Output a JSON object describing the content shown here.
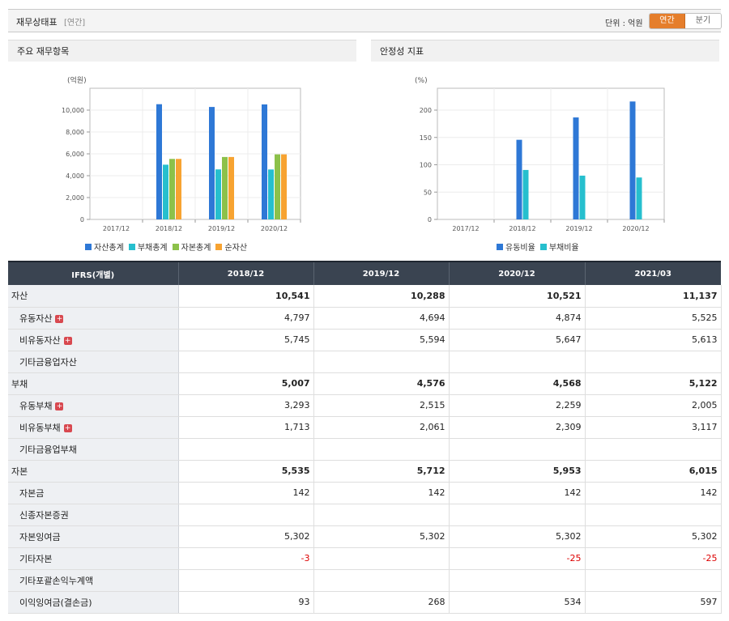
{
  "header": {
    "title": "재무상태표",
    "subtitle": "[연간]",
    "unit_label": "단위 : 억원",
    "toggle": {
      "annual": "연간",
      "quarter": "분기"
    }
  },
  "panels": {
    "left": {
      "title": "주요 재무항목"
    },
    "right": {
      "title": "안정성 지표"
    }
  },
  "chart_data": [
    {
      "type": "bar",
      "title": "주요 재무항목",
      "ylabel": "(억원)",
      "categories": [
        "2017/12",
        "2018/12",
        "2019/12",
        "2020/12"
      ],
      "ylim": [
        0,
        12000
      ],
      "yticks": [
        0,
        2000,
        4000,
        6000,
        8000,
        10000
      ],
      "ytick_labels": [
        "0",
        "2,000",
        "4,000",
        "6,000",
        "8,000",
        "10,000"
      ],
      "series": [
        {
          "name": "자산총계",
          "color": "#2e78d6",
          "values": [
            null,
            10541,
            10288,
            10521
          ]
        },
        {
          "name": "부채총계",
          "color": "#26bfce",
          "values": [
            null,
            5007,
            4576,
            4568
          ]
        },
        {
          "name": "자본총계",
          "color": "#8cc14a",
          "values": [
            null,
            5535,
            5712,
            5953
          ]
        },
        {
          "name": "순자산",
          "color": "#f7a331",
          "values": [
            null,
            5535,
            5712,
            5953
          ]
        }
      ],
      "grid": true,
      "legend": "bottom"
    },
    {
      "type": "bar",
      "title": "안정성 지표",
      "ylabel": "(%)",
      "categories": [
        "2017/12",
        "2018/12",
        "2019/12",
        "2020/12"
      ],
      "ylim": [
        0,
        240
      ],
      "yticks": [
        0,
        50,
        100,
        150,
        200
      ],
      "ytick_labels": [
        "0",
        "50",
        "100",
        "150",
        "200"
      ],
      "series": [
        {
          "name": "유동비율",
          "color": "#2e78d6",
          "values": [
            null,
            145.7,
            186.6,
            215.8
          ]
        },
        {
          "name": "부채비율",
          "color": "#26bfce",
          "values": [
            null,
            90.5,
            80.1,
            76.7
          ]
        }
      ],
      "grid": true,
      "legend": "bottom"
    }
  ],
  "table": {
    "columns": [
      "IFRS(개별)",
      "2018/12",
      "2019/12",
      "2020/12",
      "2021/03"
    ],
    "rows": [
      {
        "label": "자산",
        "main": true,
        "expand": false,
        "values": [
          "10,541",
          "10,288",
          "10,521",
          "11,137"
        ]
      },
      {
        "label": "유동자산",
        "main": false,
        "expand": true,
        "values": [
          "4,797",
          "4,694",
          "4,874",
          "5,525"
        ]
      },
      {
        "label": "비유동자산",
        "main": false,
        "expand": true,
        "values": [
          "5,745",
          "5,594",
          "5,647",
          "5,613"
        ]
      },
      {
        "label": "기타금융업자산",
        "main": false,
        "expand": false,
        "values": [
          "",
          "",
          "",
          ""
        ]
      },
      {
        "label": "부채",
        "main": true,
        "expand": false,
        "values": [
          "5,007",
          "4,576",
          "4,568",
          "5,122"
        ]
      },
      {
        "label": "유동부채",
        "main": false,
        "expand": true,
        "values": [
          "3,293",
          "2,515",
          "2,259",
          "2,005"
        ]
      },
      {
        "label": "비유동부채",
        "main": false,
        "expand": true,
        "values": [
          "1,713",
          "2,061",
          "2,309",
          "3,117"
        ]
      },
      {
        "label": "기타금융업부채",
        "main": false,
        "expand": false,
        "values": [
          "",
          "",
          "",
          ""
        ]
      },
      {
        "label": "자본",
        "main": true,
        "expand": false,
        "values": [
          "5,535",
          "5,712",
          "5,953",
          "6,015"
        ]
      },
      {
        "label": "자본금",
        "main": false,
        "expand": false,
        "values": [
          "142",
          "142",
          "142",
          "142"
        ]
      },
      {
        "label": "신종자본증권",
        "main": false,
        "expand": false,
        "values": [
          "",
          "",
          "",
          ""
        ]
      },
      {
        "label": "자본잉여금",
        "main": false,
        "expand": false,
        "values": [
          "5,302",
          "5,302",
          "5,302",
          "5,302"
        ]
      },
      {
        "label": "기타자본",
        "main": false,
        "expand": false,
        "values": [
          "-3",
          "",
          "-25",
          "-25"
        ]
      },
      {
        "label": "기타포괄손익누계액",
        "main": false,
        "expand": false,
        "values": [
          "",
          "",
          "",
          ""
        ]
      },
      {
        "label": "이익잉여금(결손금)",
        "main": false,
        "expand": false,
        "values": [
          "93",
          "268",
          "534",
          "597"
        ]
      }
    ]
  }
}
